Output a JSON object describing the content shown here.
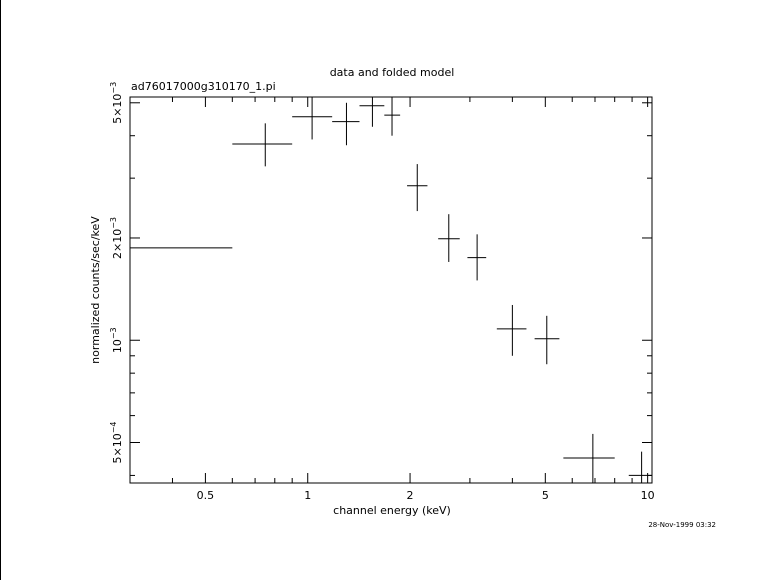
{
  "chart_data": {
    "type": "scatter",
    "title": "data and folded model",
    "subtitle": "ad76017000g310170_1.pi",
    "xlabel": "channel energy (keV)",
    "ylabel": "normalized counts/sec/keV",
    "x_scale": "log",
    "y_scale": "log",
    "xlim": [
      0.3,
      10.3
    ],
    "ylim": [
      0.00038,
      0.0052
    ],
    "x_ticks": [
      {
        "value": 0.5,
        "label": "0.5"
      },
      {
        "value": 1,
        "label": "1"
      },
      {
        "value": 2,
        "label": "2"
      },
      {
        "value": 5,
        "label": "5"
      },
      {
        "value": 10,
        "label": "10"
      }
    ],
    "y_ticks": [
      {
        "value": 0.0005,
        "mant": "5×10",
        "exp": "−4"
      },
      {
        "value": 0.001,
        "mant": "10",
        "exp": "−3"
      },
      {
        "value": 0.002,
        "mant": "2×10",
        "exp": "−3"
      },
      {
        "value": 0.005,
        "mant": "5×10",
        "exp": "−3"
      }
    ],
    "grid": false,
    "legend": "none",
    "series": [
      {
        "points": [
          {
            "x": 0.3,
            "xlo": 0.3,
            "xhi": 0.6,
            "y": 0.00187,
            "ylo": 0.00159,
            "yhi": 0.0022
          },
          {
            "x": 0.75,
            "xlo": 0.6,
            "xhi": 0.9,
            "y": 0.00378,
            "ylo": 0.00325,
            "yhi": 0.00435
          },
          {
            "x": 1.03,
            "xlo": 0.9,
            "xhi": 1.18,
            "y": 0.00455,
            "ylo": 0.0039,
            "yhi": 0.0052
          },
          {
            "x": 1.3,
            "xlo": 1.18,
            "xhi": 1.42,
            "y": 0.0044,
            "ylo": 0.00375,
            "yhi": 0.005
          },
          {
            "x": 1.55,
            "xlo": 1.42,
            "xhi": 1.68,
            "y": 0.0049,
            "ylo": 0.00425,
            "yhi": 0.0052
          },
          {
            "x": 1.77,
            "xlo": 1.68,
            "xhi": 1.87,
            "y": 0.0046,
            "ylo": 0.004,
            "yhi": 0.0052
          },
          {
            "x": 2.1,
            "xlo": 1.96,
            "xhi": 2.25,
            "y": 0.00285,
            "ylo": 0.0024,
            "yhi": 0.0033
          },
          {
            "x": 2.6,
            "xlo": 2.42,
            "xhi": 2.8,
            "y": 0.00199,
            "ylo": 0.0017,
            "yhi": 0.00235
          },
          {
            "x": 3.15,
            "xlo": 2.95,
            "xhi": 3.35,
            "y": 0.00175,
            "ylo": 0.0015,
            "yhi": 0.00205
          },
          {
            "x": 4.0,
            "xlo": 3.6,
            "xhi": 4.4,
            "y": 0.00108,
            "ylo": 0.0009,
            "yhi": 0.00127
          },
          {
            "x": 5.05,
            "xlo": 4.65,
            "xhi": 5.5,
            "y": 0.00101,
            "ylo": 0.00085,
            "yhi": 0.00118
          },
          {
            "x": 6.9,
            "xlo": 5.65,
            "xhi": 8.0,
            "y": 0.00045,
            "ylo": 0.00038,
            "yhi": 0.00053
          },
          {
            "x": 9.6,
            "xlo": 8.8,
            "xhi": 10.3,
            "y": 0.0004,
            "ylo": 0.00038,
            "yhi": 0.00047
          }
        ]
      }
    ]
  },
  "timestamp": "28-Nov-1999 03:32"
}
